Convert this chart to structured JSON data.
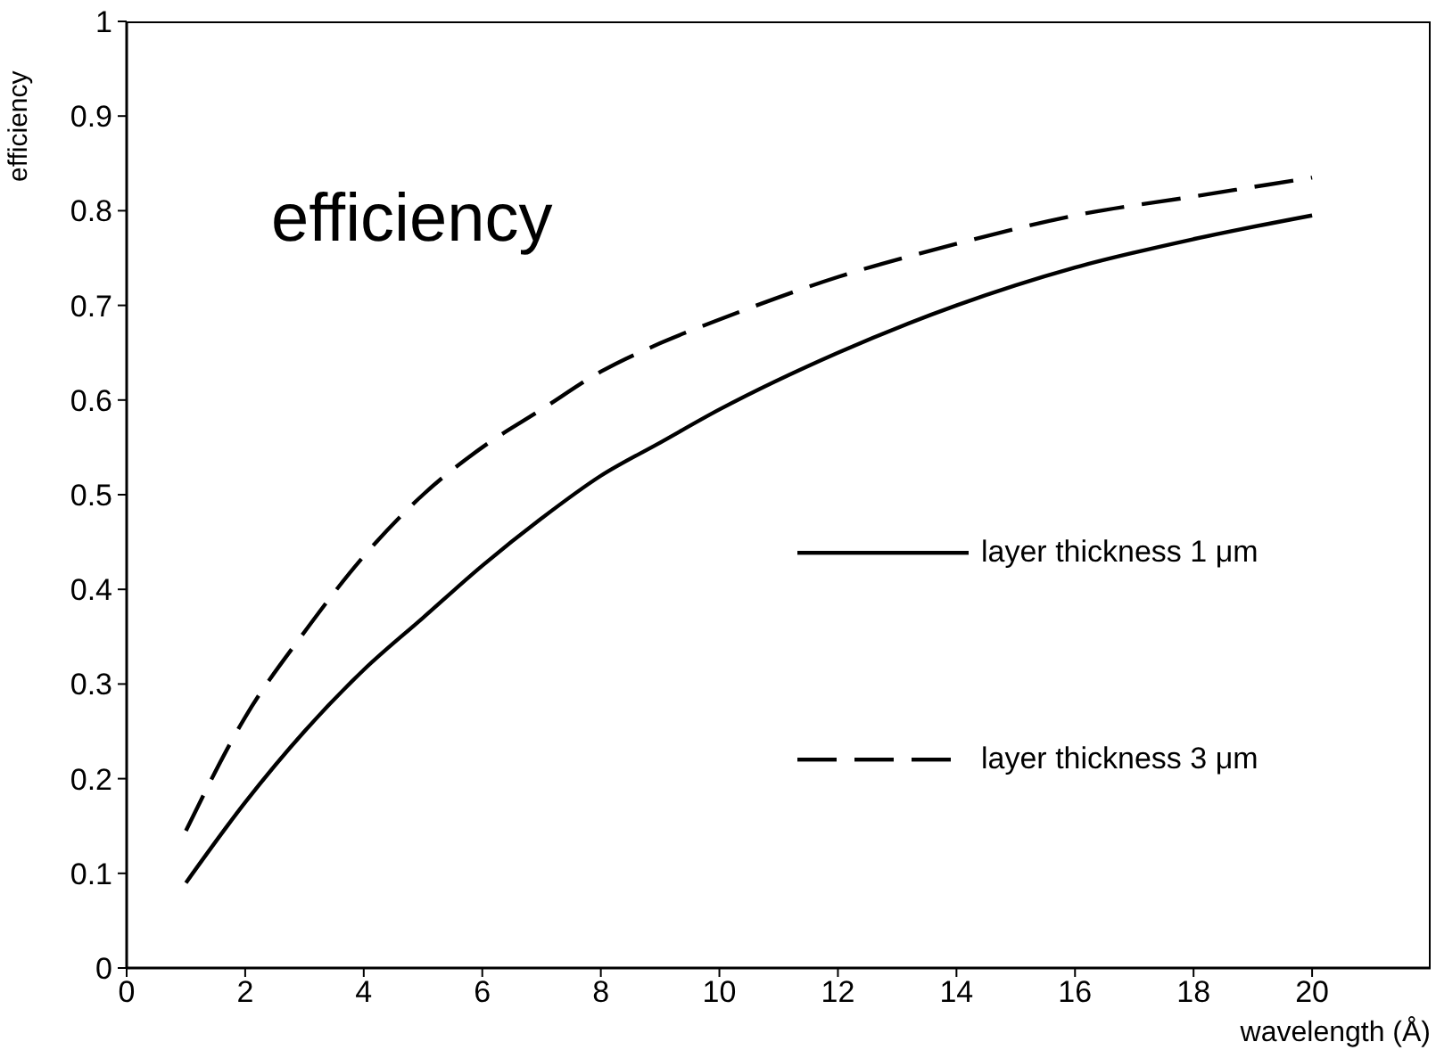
{
  "chart_data": {
    "type": "line",
    "annotations": [
      "efficiency"
    ],
    "xlabel": "wavelength (Å)",
    "ylabel": "efficiency",
    "x": [
      1,
      2,
      3,
      4,
      5,
      6,
      7,
      8,
      9,
      10,
      12,
      14,
      16,
      18,
      20
    ],
    "series": [
      {
        "name": "layer thickness 1 μm",
        "color": "#000000",
        "line_style": "solid",
        "values": [
          0.09,
          0.175,
          0.25,
          0.315,
          0.37,
          0.425,
          0.475,
          0.52,
          0.555,
          0.59,
          0.65,
          0.7,
          0.74,
          0.77,
          0.795
        ]
      },
      {
        "name": "layer thickness 3 μm",
        "color": "#000000",
        "line_style": "dashed",
        "values": [
          0.145,
          0.265,
          0.355,
          0.435,
          0.5,
          0.55,
          0.59,
          0.63,
          0.66,
          0.685,
          0.73,
          0.765,
          0.795,
          0.815,
          0.835
        ]
      }
    ],
    "xlim": [
      0,
      22
    ],
    "ylim": [
      0,
      1
    ],
    "xticks": [
      0,
      2,
      4,
      6,
      8,
      10,
      12,
      14,
      16,
      18,
      20
    ],
    "yticks": [
      0,
      0.1,
      0.2,
      0.3,
      0.4,
      0.5,
      0.6,
      0.7,
      0.8,
      0.9,
      1
    ],
    "grid": false,
    "legend": "right",
    "marker": "none"
  }
}
